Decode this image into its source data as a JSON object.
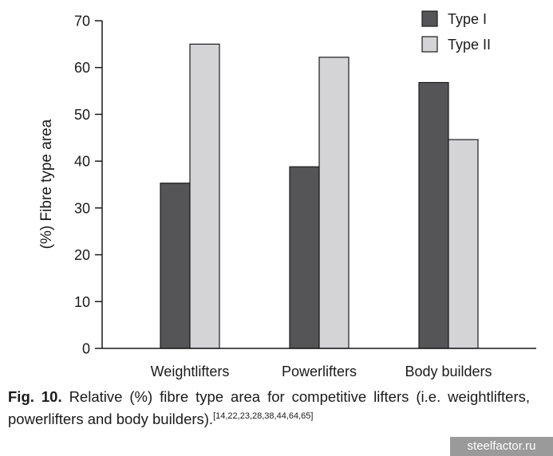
{
  "chart_data": {
    "type": "bar",
    "categories": [
      "Weightlifters",
      "Powerlifters",
      "Body builders"
    ],
    "series": [
      {
        "name": "Type I",
        "values": [
          35.3,
          38.8,
          56.8
        ],
        "color": "#555557"
      },
      {
        "name": "Type II",
        "values": [
          65.0,
          62.2,
          44.6
        ],
        "color": "#d4d4d6"
      }
    ],
    "ylabel": "(%) Fibre type area",
    "ylim": [
      0,
      70
    ],
    "yticks": [
      "0",
      "10",
      "20",
      "30",
      "40",
      "50",
      "60",
      "70"
    ],
    "grid": false,
    "legend_position": "top-right"
  },
  "caption": {
    "label": "Fig. 10.",
    "text": " Relative (%) fibre type area for competitive lifters (i.e. weightlifters, powerlifters and body builders).",
    "refs": "[14,22,23,28,38,44,64,65]"
  },
  "watermark": "steelfactor.ru"
}
